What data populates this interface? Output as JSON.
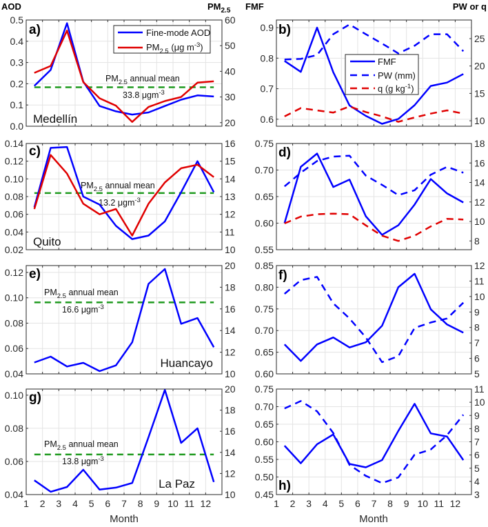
{
  "headers": {
    "aod": "AOD",
    "pm": "PM",
    "pm_sub": "2.5",
    "fmf": "FMF",
    "pw_or_q": "PW or q"
  },
  "xlabel": "Month",
  "colors": {
    "blue": "#0000ff",
    "red": "#e00000",
    "green": "#1e9a1e",
    "grid": "#e3e3e3"
  },
  "legend_a": {
    "aod": "Fine-mode AOD",
    "pm": "PM",
    "pm_sub": "2.5",
    "pm_rest": " (μg m",
    "pm_sup": "-3",
    "pm_close": ")"
  },
  "legend_b": {
    "fmf": "FMF",
    "pw": "PW (mm)",
    "q": "q (g kg",
    "q_sup": "-1",
    "q_close": ")"
  },
  "mean_label": {
    "pm": "PM",
    "sub": "2.5",
    "rest": " annual mean",
    "unit": " μgm",
    "unit_sup": "-3"
  },
  "chart_data": [
    {
      "panel": "a",
      "label": "a)",
      "type": "line",
      "city": "Medellín",
      "xlim": [
        1,
        13
      ],
      "xticks": [
        1,
        2,
        3,
        4,
        5,
        6,
        7,
        8,
        9,
        10,
        11,
        12
      ],
      "ylim_left": [
        0,
        0.5
      ],
      "yticks_left": [
        0,
        0.1,
        0.2,
        0.3,
        0.4,
        0.5
      ],
      "ylim_right": [
        18.6,
        60
      ],
      "yticks_right": [
        20,
        30,
        40,
        50,
        60
      ],
      "x": [
        1.5,
        2.5,
        3.5,
        4.5,
        5.5,
        6.5,
        7.5,
        8.5,
        9.5,
        10.5,
        11.5,
        12.5
      ],
      "series": [
        {
          "name": "Fine-mode AOD",
          "axis": "left",
          "style": "solid",
          "color": "blue",
          "values": [
            0.19,
            0.265,
            0.485,
            0.21,
            0.095,
            0.07,
            0.055,
            0.065,
            0.095,
            0.125,
            0.145,
            0.14
          ]
        },
        {
          "name": "PM2.5 (μg m-3)",
          "axis": "right",
          "style": "solid",
          "color": "red",
          "values": [
            39.4,
            42.1,
            55.9,
            35.8,
            29.5,
            26.6,
            20.3,
            26.1,
            28.4,
            30.0,
            35.6,
            36.1
          ]
        }
      ],
      "annual_mean": {
        "value": 33.8,
        "text": "33.8"
      }
    },
    {
      "panel": "b",
      "label": "b)",
      "type": "line",
      "xlim": [
        1,
        13
      ],
      "xticks": [
        1,
        2,
        3,
        4,
        5,
        6,
        7,
        8,
        9,
        10,
        11,
        12
      ],
      "ylim_left": [
        0.577,
        0.925
      ],
      "yticks_left": [
        0.6,
        0.7,
        0.8,
        0.9
      ],
      "ylim_right": [
        9,
        28.4
      ],
      "yticks_right": [
        10,
        15,
        20,
        25
      ],
      "x": [
        1.5,
        2.5,
        3.5,
        4.5,
        5.5,
        6.5,
        7.5,
        8.5,
        9.5,
        10.5,
        11.5,
        12.5
      ],
      "series": [
        {
          "name": "FMF",
          "axis": "left",
          "style": "solid",
          "color": "blue",
          "values": [
            0.791,
            0.755,
            0.9,
            0.754,
            0.645,
            0.611,
            0.585,
            0.601,
            0.646,
            0.709,
            0.72,
            0.748
          ]
        },
        {
          "name": "PW (mm)",
          "axis": "right",
          "style": "dashed",
          "color": "blue",
          "values": [
            21.2,
            21.3,
            22.0,
            25.8,
            27.6,
            25.8,
            24.1,
            22.3,
            23.7,
            25.8,
            25.8,
            22.7
          ]
        },
        {
          "name": "q (g kg-1)",
          "axis": "right",
          "style": "dashed",
          "color": "red",
          "values": [
            10.8,
            12.3,
            11.9,
            11.5,
            12.6,
            11.6,
            10.8,
            9.8,
            10.6,
            11.3,
            11.9,
            11.3
          ]
        }
      ]
    },
    {
      "panel": "c",
      "label": "c)",
      "type": "line",
      "city": "Quito",
      "xlim": [
        1,
        13
      ],
      "xticks": [
        1,
        2,
        3,
        4,
        5,
        6,
        7,
        8,
        9,
        10,
        11,
        12
      ],
      "ylim_left": [
        0.02,
        0.14
      ],
      "yticks_left": [
        0.02,
        0.04,
        0.06,
        0.08,
        0.1,
        0.12,
        0.14
      ],
      "ylim_right": [
        10,
        16
      ],
      "yticks_right": [
        10,
        11,
        12,
        13,
        14,
        15,
        16
      ],
      "x": [
        1.5,
        2.5,
        3.5,
        4.5,
        5.5,
        6.5,
        7.5,
        8.5,
        9.5,
        10.5,
        11.5,
        12.5
      ],
      "series": [
        {
          "name": "Fine-mode AOD",
          "axis": "left",
          "style": "solid",
          "color": "blue",
          "values": [
            0.068,
            0.135,
            0.136,
            0.08,
            0.071,
            0.047,
            0.032,
            0.036,
            0.052,
            0.085,
            0.12,
            0.085
          ]
        },
        {
          "name": "PM2.5 (μg m-3)",
          "axis": "right",
          "style": "solid",
          "color": "red",
          "values": [
            12.3,
            15.35,
            14.3,
            12.6,
            12.0,
            12.3,
            10.8,
            12.6,
            13.8,
            14.6,
            14.8,
            14.1
          ]
        }
      ],
      "annual_mean": {
        "value": 13.2,
        "text": "13.2"
      }
    },
    {
      "panel": "d",
      "label": "d)",
      "type": "line",
      "xlim": [
        1,
        13
      ],
      "xticks": [
        1,
        2,
        3,
        4,
        5,
        6,
        7,
        8,
        9,
        10,
        11,
        12
      ],
      "ylim_left": [
        0.55,
        0.75
      ],
      "yticks_left": [
        0.55,
        0.6,
        0.65,
        0.7,
        0.75
      ],
      "ylim_right": [
        7.1,
        18
      ],
      "yticks_right": [
        8,
        10,
        12,
        14,
        16,
        18
      ],
      "x": [
        1.5,
        2.5,
        3.5,
        4.5,
        5.5,
        6.5,
        7.5,
        8.5,
        9.5,
        10.5,
        11.5,
        12.5
      ],
      "series": [
        {
          "name": "FMF",
          "axis": "left",
          "style": "solid",
          "color": "blue",
          "values": [
            0.6,
            0.706,
            0.731,
            0.668,
            0.682,
            0.613,
            0.578,
            0.596,
            0.635,
            0.683,
            0.656,
            0.639
          ]
        },
        {
          "name": "PW (mm)",
          "axis": "right",
          "style": "dashed",
          "color": "blue",
          "values": [
            13.6,
            15.0,
            16.2,
            16.65,
            16.75,
            14.7,
            13.75,
            12.7,
            13.2,
            14.8,
            15.6,
            15.0
          ]
        },
        {
          "name": "q (g kg-1)",
          "axis": "right",
          "style": "dashed",
          "color": "red",
          "values": [
            9.8,
            10.5,
            10.74,
            10.8,
            10.74,
            9.6,
            8.54,
            8.0,
            8.54,
            9.49,
            10.27,
            10.2
          ]
        }
      ]
    },
    {
      "panel": "e",
      "label": "e)",
      "type": "line",
      "city": "Huancayo",
      "xlim": [
        1,
        13
      ],
      "xticks": [
        1,
        2,
        3,
        4,
        5,
        6,
        7,
        8,
        9,
        10,
        11,
        12
      ],
      "ylim_left": [
        0.04,
        0.1254
      ],
      "yticks_left": [
        0.04,
        0.06,
        0.08,
        0.1,
        0.12
      ],
      "ylim_right": [
        10,
        20
      ],
      "yticks_right": [
        10,
        12,
        14,
        16,
        18,
        20
      ],
      "x": [
        1.5,
        2.5,
        3.5,
        4.5,
        5.5,
        6.5,
        7.5,
        8.5,
        9.5,
        10.5,
        11.5,
        12.5
      ],
      "series": [
        {
          "name": "Fine-mode AOD",
          "axis": "left",
          "style": "solid",
          "color": "blue",
          "values": [
            0.049,
            0.0536,
            0.0458,
            0.0487,
            0.0422,
            0.0467,
            0.0649,
            0.111,
            0.1227,
            0.0795,
            0.084,
            0.061
          ]
        }
      ],
      "annual_mean": {
        "value": 16.6,
        "text": "16.6"
      }
    },
    {
      "panel": "f",
      "label": "f)",
      "type": "line",
      "xlim": [
        1,
        13
      ],
      "xticks": [
        1,
        2,
        3,
        4,
        5,
        6,
        7,
        8,
        9,
        10,
        11,
        12
      ],
      "ylim_left": [
        0.6,
        0.85
      ],
      "yticks_left": [
        0.6,
        0.65,
        0.7,
        0.75,
        0.8,
        0.85
      ],
      "ylim_right": [
        5,
        12
      ],
      "yticks_right": [
        5,
        6,
        7,
        8,
        9,
        10,
        11,
        12
      ],
      "x": [
        1.5,
        2.5,
        3.5,
        4.5,
        5.5,
        6.5,
        7.5,
        8.5,
        9.5,
        10.5,
        11.5,
        12.5
      ],
      "series": [
        {
          "name": "FMF",
          "axis": "left",
          "style": "solid",
          "color": "blue",
          "values": [
            0.668,
            0.63,
            0.668,
            0.684,
            0.661,
            0.673,
            0.711,
            0.8,
            0.831,
            0.749,
            0.714,
            0.695
          ]
        },
        {
          "name": "PW (mm)",
          "axis": "right",
          "style": "dashed",
          "color": "blue",
          "values": [
            10.17,
            11.06,
            11.27,
            9.56,
            8.58,
            7.36,
            5.76,
            6.14,
            7.97,
            8.32,
            8.58,
            9.6
          ]
        }
      ]
    },
    {
      "panel": "g",
      "label": "g)",
      "type": "line",
      "city": "La Paz",
      "xlim": [
        1,
        13
      ],
      "xticks": [
        1,
        2,
        3,
        4,
        5,
        6,
        7,
        8,
        9,
        10,
        11,
        12
      ],
      "ylim_left": [
        0.04,
        0.1037
      ],
      "yticks_left": [
        0.04,
        0.06,
        0.08,
        0.1
      ],
      "ylim_right": [
        10,
        20
      ],
      "yticks_right": [
        10,
        12,
        14,
        16,
        18,
        20
      ],
      "x": [
        1.5,
        2.5,
        3.5,
        4.5,
        5.5,
        6.5,
        7.5,
        8.5,
        9.5,
        10.5,
        11.5,
        12.5
      ],
      "series": [
        {
          "name": "Fine-mode AOD",
          "axis": "left",
          "style": "solid",
          "color": "blue",
          "values": [
            0.0486,
            0.0417,
            0.0446,
            0.055,
            0.043,
            0.0442,
            0.047,
            0.0747,
            0.1032,
            0.0712,
            0.08,
            0.0476
          ]
        }
      ],
      "annual_mean": {
        "value": 13.8,
        "text": "13.8"
      }
    },
    {
      "panel": "h",
      "label": "h)",
      "type": "line",
      "xlim": [
        1,
        13
      ],
      "xticks": [
        1,
        2,
        3,
        4,
        5,
        6,
        7,
        8,
        9,
        10,
        11,
        12
      ],
      "ylim_left": [
        0.45,
        0.75
      ],
      "yticks_left": [
        0.45,
        0.5,
        0.55,
        0.6,
        0.65,
        0.7,
        0.75
      ],
      "ylim_right": [
        3,
        11
      ],
      "yticks_right": [
        3,
        4,
        5,
        6,
        7,
        8,
        9,
        10,
        11
      ],
      "x": [
        1.5,
        2.5,
        3.5,
        4.5,
        5.5,
        6.5,
        7.5,
        8.5,
        9.5,
        10.5,
        11.5,
        12.5
      ],
      "series": [
        {
          "name": "FMF",
          "axis": "left",
          "style": "solid",
          "color": "blue",
          "values": [
            0.589,
            0.539,
            0.593,
            0.621,
            0.537,
            0.5275,
            0.548,
            0.631,
            0.708,
            0.624,
            0.615,
            0.548
          ]
        },
        {
          "name": "PW (mm)",
          "axis": "right",
          "style": "dashed",
          "color": "blue",
          "values": [
            9.53,
            10.09,
            9.31,
            7.67,
            5.25,
            4.42,
            3.87,
            4.3,
            6.03,
            6.42,
            7.5,
            9.05
          ]
        }
      ]
    }
  ]
}
